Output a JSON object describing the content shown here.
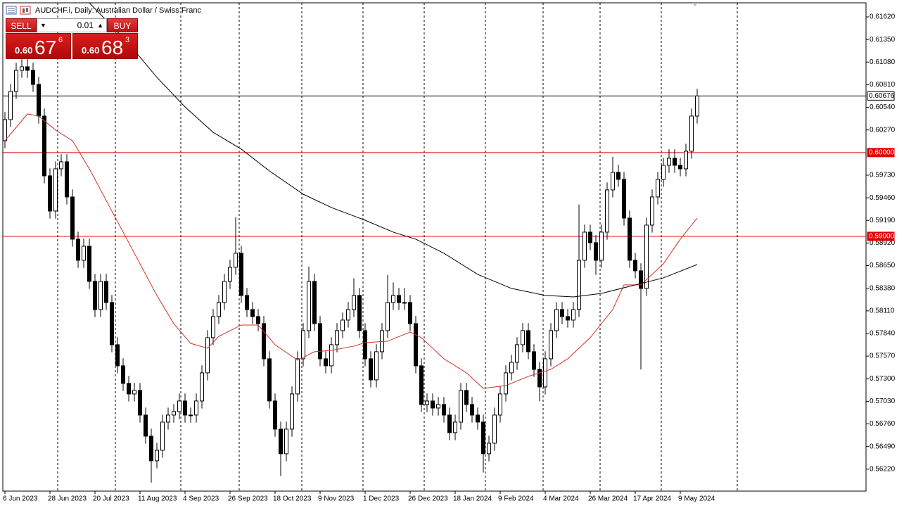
{
  "chart_data": {
    "type": "candlestick",
    "title": "AUDCHF.i, Daily:  Australian Dollar / Swiss Franc",
    "trade_panel": {
      "sell": "SELL",
      "buy": "BUY",
      "lot": "0.01",
      "bid": {
        "prefix": "0.60",
        "big": "67",
        "small": "6"
      },
      "ask": {
        "prefix": "0.60",
        "big": "68",
        "small": "3"
      }
    },
    "categories": [
      "6 Jun 2023",
      null,
      null,
      null,
      null,
      null,
      null,
      null,
      "28 Jun 2023",
      null,
      null,
      null,
      null,
      null,
      null,
      null,
      "20 Jul 2023",
      null,
      null,
      null,
      null,
      null,
      null,
      null,
      "11 Aug 2023",
      null,
      null,
      null,
      null,
      null,
      null,
      null,
      "4 Sep 2023",
      null,
      null,
      null,
      null,
      null,
      null,
      null,
      "26 Sep 2023",
      null,
      null,
      null,
      null,
      null,
      null,
      null,
      "18 Oct 2023",
      null,
      null,
      null,
      null,
      null,
      null,
      null,
      "9 Nov 2023",
      null,
      null,
      null,
      null,
      null,
      null,
      null,
      "1 Dec 2023",
      null,
      null,
      null,
      null,
      null,
      null,
      null,
      "26 Dec 2023",
      null,
      null,
      null,
      null,
      null,
      null,
      null,
      "18 Jan 2024",
      null,
      null,
      null,
      null,
      null,
      null,
      null,
      "9 Feb 2024",
      null,
      null,
      null,
      null,
      null,
      null,
      null,
      "4 Mar 2024",
      null,
      null,
      null,
      null,
      null,
      null,
      null,
      "26 Mar 2024",
      null,
      null,
      null,
      null,
      null,
      null,
      null,
      "17 Apr 2024",
      null,
      null,
      null,
      null,
      null,
      null,
      null,
      "9 May 2024",
      null,
      null,
      null
    ],
    "candles": [
      [
        0.60142,
        0.60484,
        0.60052,
        0.60394
      ],
      [
        0.60394,
        0.6082,
        0.60304,
        0.6073
      ],
      [
        0.6073,
        0.61072,
        0.6064,
        0.60982
      ],
      [
        0.60982,
        0.61114,
        0.60892,
        0.61024
      ],
      [
        0.61024,
        0.61114,
        0.60892,
        0.60982
      ],
      [
        0.60982,
        0.61072,
        0.60724,
        0.60814
      ],
      [
        0.60814,
        0.60904,
        0.60346,
        0.60436
      ],
      [
        0.60436,
        0.60526,
        0.59632,
        0.59722
      ],
      [
        0.59722,
        0.59812,
        0.59212,
        0.59302
      ],
      [
        0.59302,
        0.59896,
        0.59212,
        0.59806
      ],
      [
        0.59806,
        0.5998,
        0.59716,
        0.5989
      ],
      [
        0.5989,
        0.5998,
        0.5938,
        0.5947
      ],
      [
        0.5947,
        0.5956,
        0.58876,
        0.58966
      ],
      [
        0.58966,
        0.59056,
        0.58624,
        0.58714
      ],
      [
        0.58714,
        0.58972,
        0.58624,
        0.58882
      ],
      [
        0.58882,
        0.58972,
        0.58372,
        0.58462
      ],
      [
        0.58462,
        0.58552,
        0.58036,
        0.58126
      ],
      [
        0.58126,
        0.58552,
        0.58036,
        0.58462
      ],
      [
        0.58462,
        0.58552,
        0.5812,
        0.5821
      ],
      [
        0.5821,
        0.583,
        0.57616,
        0.57706
      ],
      [
        0.57706,
        0.57796,
        0.57364,
        0.57454
      ],
      [
        0.57454,
        0.57544,
        0.57154,
        0.57244
      ],
      [
        0.57244,
        0.57334,
        0.57028,
        0.57118
      ],
      [
        0.57118,
        0.5725,
        0.57028,
        0.5716
      ],
      [
        0.5716,
        0.5725,
        0.56776,
        0.56866
      ],
      [
        0.56866,
        0.56956,
        0.56524,
        0.56614
      ],
      [
        0.56614,
        0.56704,
        0.5606,
        0.5632
      ],
      [
        0.5632,
        0.56536,
        0.5623,
        0.56446
      ],
      [
        0.56446,
        0.56872,
        0.56356,
        0.56782
      ],
      [
        0.56782,
        0.56956,
        0.56692,
        0.56866
      ],
      [
        0.56866,
        0.56998,
        0.56776,
        0.56908
      ],
      [
        0.56908,
        0.57124,
        0.56818,
        0.57034
      ],
      [
        0.57034,
        0.57124,
        0.56776,
        0.56866
      ],
      [
        0.56866,
        0.56956,
        0.56776,
        0.56866
      ],
      [
        0.56866,
        0.57124,
        0.56776,
        0.57034
      ],
      [
        0.57034,
        0.5746,
        0.56944,
        0.5737
      ],
      [
        0.5737,
        0.5788,
        0.5728,
        0.5779
      ],
      [
        0.5779,
        0.58132,
        0.577,
        0.58042
      ],
      [
        0.58042,
        0.583,
        0.57952,
        0.5821
      ],
      [
        0.5821,
        0.58552,
        0.5812,
        0.58462
      ],
      [
        0.58462,
        0.5872,
        0.58372,
        0.5863
      ],
      [
        0.5863,
        0.5923,
        0.5854,
        0.58798
      ],
      [
        0.58798,
        0.58888,
        0.58204,
        0.58294
      ],
      [
        0.58294,
        0.58384,
        0.58036,
        0.58126
      ],
      [
        0.58126,
        0.58216,
        0.57952,
        0.58042
      ],
      [
        0.58042,
        0.58132,
        0.57868,
        0.57958
      ],
      [
        0.57958,
        0.58048,
        0.57448,
        0.57538
      ],
      [
        0.57538,
        0.57628,
        0.56944,
        0.57034
      ],
      [
        0.57034,
        0.57124,
        0.56608,
        0.56698
      ],
      [
        0.56698,
        0.56788,
        0.5614,
        0.56404
      ],
      [
        0.56404,
        0.56788,
        0.56314,
        0.56698
      ],
      [
        0.56698,
        0.57208,
        0.56608,
        0.57118
      ],
      [
        0.57118,
        0.57628,
        0.57028,
        0.57538
      ],
      [
        0.57538,
        0.57964,
        0.57448,
        0.57874
      ],
      [
        0.57874,
        0.5864,
        0.57784,
        0.58462
      ],
      [
        0.58462,
        0.58552,
        0.57868,
        0.57958
      ],
      [
        0.57958,
        0.58048,
        0.57448,
        0.57538
      ],
      [
        0.57538,
        0.57628,
        0.57364,
        0.57454
      ],
      [
        0.57454,
        0.57796,
        0.57364,
        0.57706
      ],
      [
        0.57706,
        0.57964,
        0.57616,
        0.57874
      ],
      [
        0.57874,
        0.5809,
        0.57784,
        0.58
      ],
      [
        0.58,
        0.58216,
        0.5791,
        0.58126
      ],
      [
        0.58126,
        0.585,
        0.58036,
        0.58294
      ],
      [
        0.58294,
        0.58384,
        0.57784,
        0.57874
      ],
      [
        0.57874,
        0.57964,
        0.57448,
        0.57538
      ],
      [
        0.57538,
        0.57628,
        0.57196,
        0.57286
      ],
      [
        0.57286,
        0.57712,
        0.57196,
        0.57622
      ],
      [
        0.57622,
        0.57964,
        0.57532,
        0.57874
      ],
      [
        0.57874,
        0.5854,
        0.57784,
        0.5821
      ],
      [
        0.5821,
        0.5845,
        0.5812,
        0.58294
      ],
      [
        0.58294,
        0.58384,
        0.5812,
        0.5821
      ],
      [
        0.5821,
        0.58384,
        0.5812,
        0.5821
      ],
      [
        0.5821,
        0.583,
        0.57868,
        0.57958
      ],
      [
        0.57958,
        0.58048,
        0.57364,
        0.57454
      ],
      [
        0.57454,
        0.57544,
        0.56902,
        0.56992
      ],
      [
        0.56992,
        0.57124,
        0.56902,
        0.57034
      ],
      [
        0.57034,
        0.57124,
        0.5686,
        0.5695
      ],
      [
        0.5695,
        0.57082,
        0.5686,
        0.56992
      ],
      [
        0.56992,
        0.57082,
        0.56776,
        0.56866
      ],
      [
        0.56866,
        0.56956,
        0.56566,
        0.56656
      ],
      [
        0.56656,
        0.56872,
        0.56566,
        0.56782
      ],
      [
        0.56782,
        0.5725,
        0.56692,
        0.5716
      ],
      [
        0.5716,
        0.5725,
        0.56902,
        0.56992
      ],
      [
        0.56992,
        0.57082,
        0.56776,
        0.56866
      ],
      [
        0.56866,
        0.56956,
        0.56692,
        0.56782
      ],
      [
        0.56782,
        0.56872,
        0.5618,
        0.56404
      ],
      [
        0.56404,
        0.5662,
        0.56314,
        0.5653
      ],
      [
        0.5653,
        0.56956,
        0.5644,
        0.56866
      ],
      [
        0.56866,
        0.57208,
        0.56776,
        0.57118
      ],
      [
        0.57118,
        0.5746,
        0.57028,
        0.5737
      ],
      [
        0.5737,
        0.57586,
        0.5728,
        0.57496
      ],
      [
        0.57496,
        0.57796,
        0.57406,
        0.57706
      ],
      [
        0.57706,
        0.57964,
        0.57616,
        0.57874
      ],
      [
        0.57874,
        0.57964,
        0.57532,
        0.57622
      ],
      [
        0.57622,
        0.57712,
        0.57322,
        0.57412
      ],
      [
        0.57412,
        0.57502,
        0.5703,
        0.57202
      ],
      [
        0.57202,
        0.57628,
        0.57112,
        0.57538
      ],
      [
        0.57538,
        0.57964,
        0.57448,
        0.57874
      ],
      [
        0.57874,
        0.58216,
        0.57784,
        0.58126
      ],
      [
        0.58126,
        0.58216,
        0.57952,
        0.58042
      ],
      [
        0.58042,
        0.58132,
        0.5791,
        0.58
      ],
      [
        0.58,
        0.58216,
        0.5791,
        0.58126
      ],
      [
        0.58126,
        0.5938,
        0.58036,
        0.58714
      ],
      [
        0.58714,
        0.5914,
        0.58624,
        0.5905
      ],
      [
        0.5905,
        0.5914,
        0.58834,
        0.58924
      ],
      [
        0.58924,
        0.59014,
        0.5854,
        0.58714
      ],
      [
        0.58714,
        0.5914,
        0.58624,
        0.5905
      ],
      [
        0.5905,
        0.59644,
        0.5896,
        0.59554
      ],
      [
        0.59554,
        0.5995,
        0.59464,
        0.59764
      ],
      [
        0.59764,
        0.59854,
        0.5959,
        0.5968
      ],
      [
        0.5968,
        0.5977,
        0.59128,
        0.59218
      ],
      [
        0.59218,
        0.59308,
        0.58624,
        0.58714
      ],
      [
        0.58714,
        0.58804,
        0.58498,
        0.58588
      ],
      [
        0.58588,
        0.58678,
        0.5741,
        0.58378
      ],
      [
        0.58378,
        0.59224,
        0.58288,
        0.59134
      ],
      [
        0.59134,
        0.5956,
        0.59044,
        0.5947
      ],
      [
        0.5947,
        0.5977,
        0.5938,
        0.5968
      ],
      [
        0.5968,
        0.59938,
        0.5959,
        0.59848
      ],
      [
        0.59848,
        0.6004,
        0.59758,
        0.59932
      ],
      [
        0.59932,
        0.6004,
        0.59758,
        0.59848
      ],
      [
        0.59848,
        0.59938,
        0.59716,
        0.59806
      ],
      [
        0.59806,
        0.60106,
        0.59716,
        0.60016
      ],
      [
        0.60016,
        0.60526,
        0.59926,
        0.60436
      ],
      [
        0.60436,
        0.6076,
        0.60346,
        0.60676
      ]
    ],
    "up_color": "#ffffff",
    "down_color": "#000000",
    "series": [
      {
        "color": "#d0302a",
        "x": [
          0,
          2,
          4,
          6,
          9,
          12,
          15,
          19,
          23,
          27,
          30,
          33,
          36,
          38,
          42,
          45,
          48,
          52,
          55,
          58,
          62,
          64,
          68,
          72,
          74,
          78,
          82,
          85,
          89,
          93,
          97,
          100,
          104,
          108,
          110,
          113,
          117,
          120,
          123
        ],
        "values": [
          0.60142,
          0.603,
          0.60461,
          0.60436,
          0.60268,
          0.60142,
          0.59806,
          0.59302,
          0.58798,
          0.58294,
          0.57958,
          0.57722,
          0.57664,
          0.57806,
          0.57941,
          0.57941,
          0.57706,
          0.57521,
          0.57622,
          0.57638,
          0.57689,
          0.57731,
          0.57748,
          0.57857,
          0.5779,
          0.57538,
          0.5737,
          0.57185,
          0.57218,
          0.57328,
          0.57412,
          0.57538,
          0.5779,
          0.58126,
          0.5842,
          0.5842,
          0.58672,
          0.58966,
          0.59218
        ]
      },
      {
        "color": "#000000",
        "x": [
          15,
          22,
          27,
          32,
          37,
          42,
          47,
          53,
          58,
          64,
          69,
          73,
          78,
          84,
          90,
          96,
          101,
          106,
          112,
          117,
          123
        ],
        "values": [
          0.61788,
          0.61301,
          0.60898,
          0.60545,
          0.60242,
          0.60041,
          0.5978,
          0.59503,
          0.59344,
          0.59192,
          0.5905,
          0.58966,
          0.58798,
          0.58546,
          0.58378,
          0.58294,
          0.58277,
          0.58319,
          0.5842,
          0.58504,
          0.58663
        ]
      }
    ],
    "levels": [
      {
        "value": 0.60676,
        "label": "0.60676",
        "color": "#000000"
      },
      {
        "value": 0.6,
        "label": "0.60000",
        "color": "#e00000"
      },
      {
        "value": 0.59,
        "label": "0.59000",
        "color": "#e00000"
      }
    ],
    "ylim": [
      0.55958,
      0.61788
    ],
    "yticks": [
      {
        "value": 0.6162,
        "label": "0.61620"
      },
      {
        "value": 0.6135,
        "label": "0.61350"
      },
      {
        "value": 0.6108,
        "label": "0.61080"
      },
      {
        "value": 0.6081,
        "label": "0.60810"
      },
      {
        "value": 0.6054,
        "label": "0.60540"
      },
      {
        "value": 0.6027,
        "label": "0.60270"
      },
      {
        "value": 0.5973,
        "label": "0.59730"
      },
      {
        "value": 0.5946,
        "label": "0.59460"
      },
      {
        "value": 0.5919,
        "label": "0.59190"
      },
      {
        "value": 0.5892,
        "label": "0.58920"
      },
      {
        "value": 0.5865,
        "label": "0.58650"
      },
      {
        "value": 0.5838,
        "label": "0.58380"
      },
      {
        "value": 0.5811,
        "label": "0.58110"
      },
      {
        "value": 0.5784,
        "label": "0.57840"
      },
      {
        "value": 0.5757,
        "label": "0.57570"
      },
      {
        "value": 0.573,
        "label": "0.57300"
      },
      {
        "value": 0.5703,
        "label": "0.57030"
      },
      {
        "value": 0.5676,
        "label": "0.56760"
      },
      {
        "value": 0.5649,
        "label": "0.56490"
      },
      {
        "value": 0.5622,
        "label": "0.56220"
      }
    ]
  }
}
